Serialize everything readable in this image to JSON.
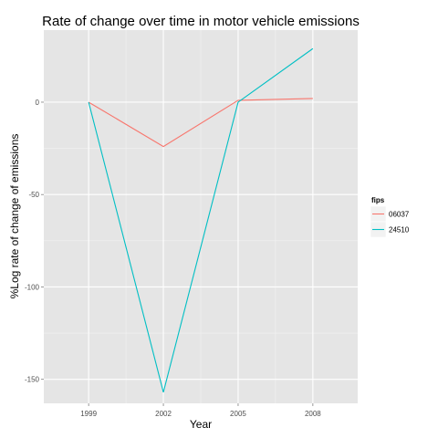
{
  "chart_data": {
    "type": "line",
    "title": "Rate of change over time in motor vehicle emissions",
    "xlabel": "Year",
    "ylabel": "%Log rate of change of emissions",
    "x": [
      1999,
      2002,
      2005,
      2008
    ],
    "x_ticks": [
      "1999",
      "2002",
      "2005",
      "2008"
    ],
    "y_ticks": [
      "0",
      "-50",
      "-100",
      "-150"
    ],
    "xlim": [
      1997.2,
      2009.8
    ],
    "ylim": [
      -163,
      39
    ],
    "grid": true,
    "legend": {
      "title": "fips",
      "position": "right"
    },
    "series": [
      {
        "name": "06037",
        "color": "#F8766D",
        "values": [
          0,
          -24,
          1,
          2
        ]
      },
      {
        "name": "24510",
        "color": "#00BFC4",
        "values": [
          0,
          -157,
          0,
          29
        ]
      }
    ],
    "colors": {
      "panel": "#E5E5E5",
      "grid_major": "#FFFFFF",
      "grid_minor": "#F2F2F2"
    }
  }
}
